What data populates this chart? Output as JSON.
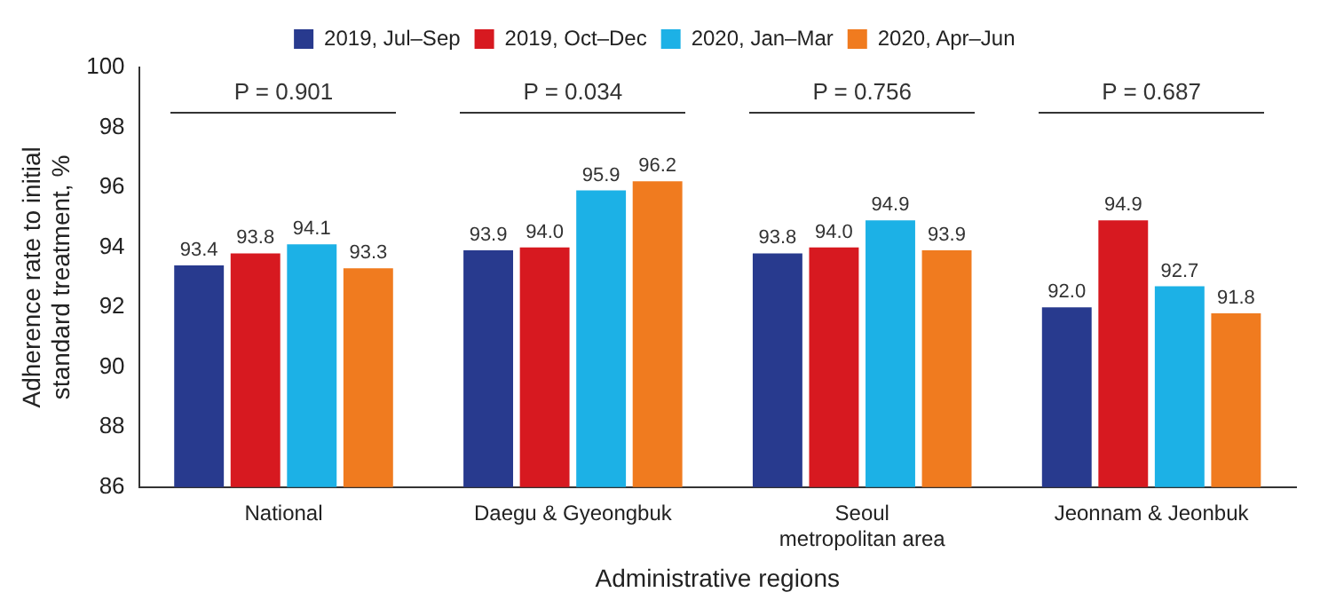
{
  "chart_data": {
    "type": "bar",
    "xlabel": "Administrative regions",
    "ylabel": "Adherence rate to initial standard treatment, %",
    "categories": [
      "National",
      "Daegu & Gyeongbuk",
      "Seoul metropolitan area",
      "Jeonnam & Jeonbuk"
    ],
    "series": [
      {
        "name": "2019, Jul–Sep",
        "color": "#283a8e",
        "values": [
          93.4,
          93.9,
          93.8,
          92.0
        ],
        "value_labels": [
          "93.4",
          "93.9",
          "93.8",
          "92.0"
        ]
      },
      {
        "name": "2019, Oct–Dec",
        "color": "#d71920",
        "values": [
          93.8,
          94.0,
          94.0,
          94.9
        ],
        "value_labels": [
          "93.8",
          "94.0",
          "94.0",
          "94.9"
        ]
      },
      {
        "name": "2020, Jan–Mar",
        "color": "#1cb1e6",
        "values": [
          94.1,
          95.9,
          94.9,
          92.7
        ],
        "value_labels": [
          "94.1",
          "95.9",
          "94.9",
          "92.7"
        ]
      },
      {
        "name": "2020, Apr–Jun",
        "color": "#f07b1f",
        "values": [
          93.3,
          96.2,
          93.9,
          91.8
        ],
        "value_labels": [
          "93.3",
          "96.2",
          "93.9",
          "91.8"
        ]
      }
    ],
    "ylim": [
      86,
      100
    ],
    "yticks": [
      86,
      88,
      90,
      92,
      94,
      96,
      98,
      100
    ],
    "grid": false,
    "legend": "top",
    "annotations": [
      "P = 0.901",
      "P = 0.034",
      "P = 0.756",
      "P = 0.687"
    ]
  }
}
